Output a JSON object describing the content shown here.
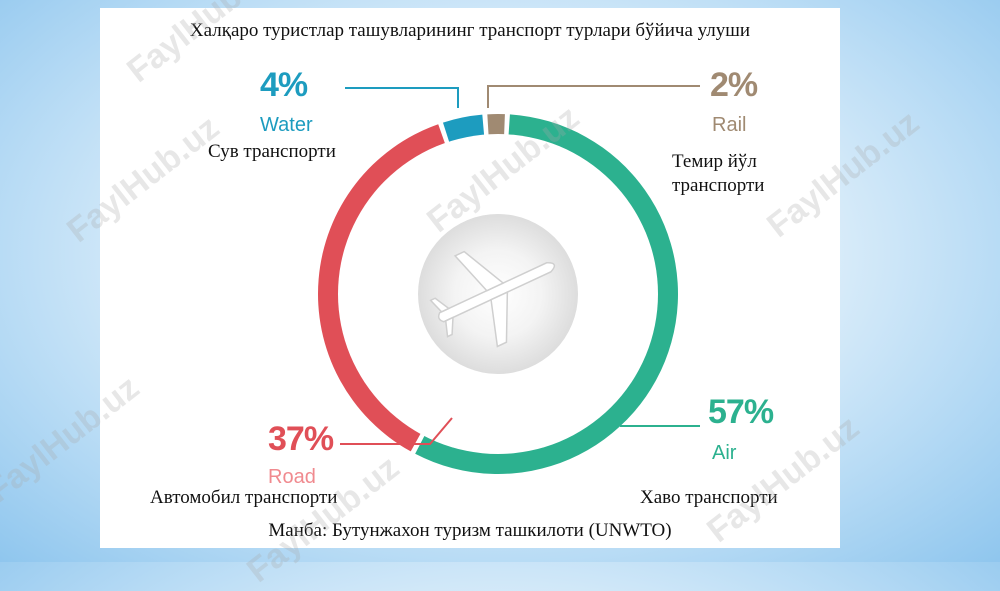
{
  "watermark": "FaylHub.uz",
  "source": "Манба: Бутунжахон туризм ташкилоти (UNWTO)",
  "chart_data": {
    "type": "pie",
    "title": "Халқаро туристлар ташувларининг транспорт турлари бўйича улуши",
    "categories": [
      "Water",
      "Rail",
      "Air",
      "Road"
    ],
    "values": [
      4,
      2,
      57,
      37
    ],
    "slices": [
      {
        "key": "water",
        "label_en": "Water",
        "label_uz": "Сув транспорти",
        "percent_text": "4%",
        "value": 4,
        "color": "#1d9cbf"
      },
      {
        "key": "rail",
        "label_en": "Rail",
        "label_uz": "Темир йўл транспорти",
        "percent_text": "2%",
        "value": 2,
        "color": "#a08a72"
      },
      {
        "key": "air",
        "label_en": "Air",
        "label_uz": "Хаво транспорти",
        "percent_text": "57%",
        "value": 57,
        "color": "#2cb18f"
      },
      {
        "key": "road",
        "label_en": "Road",
        "label_uz": "Автомобил транспорти",
        "percent_text": "37%",
        "value": 37,
        "color": "#e04f57"
      }
    ],
    "center_icon": "airplane-icon",
    "legend": "none"
  }
}
